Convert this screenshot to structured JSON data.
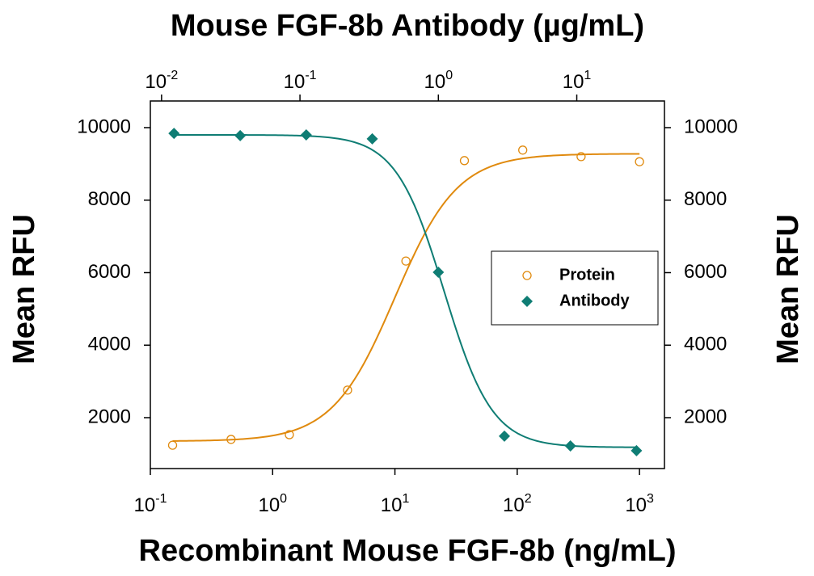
{
  "chart_data": {
    "type": "scatter",
    "x_label": "Recombinant Mouse FGF-8b (ng/mL)",
    "x2_label": "Mouse FGF-8b Antibody (µg/mL)",
    "y_label": "Mean RFU",
    "y2_label": "Mean RFU",
    "x_log": true,
    "x2_log": true,
    "xlim": [
      0.1,
      1600
    ],
    "xticks": [
      {
        "value": 0.1,
        "label": "10",
        "exponent": "-1"
      },
      {
        "value": 1,
        "label": "10",
        "exponent": "0"
      },
      {
        "value": 10,
        "label": "10",
        "exponent": "1"
      },
      {
        "value": 100,
        "label": "10",
        "exponent": "2"
      },
      {
        "value": 1000,
        "label": "10",
        "exponent": "3"
      }
    ],
    "x2lim": [
      0.0083,
      43
    ],
    "x2ticks": [
      {
        "value": 0.01,
        "label": "10",
        "exponent": "-2"
      },
      {
        "value": 0.1,
        "label": "10",
        "exponent": "-1"
      },
      {
        "value": 1,
        "label": "10",
        "exponent": "0"
      },
      {
        "value": 10,
        "label": "10",
        "exponent": "1"
      }
    ],
    "ylim": [
      596,
      10735
    ],
    "yticks": [
      2000,
      4000,
      6000,
      8000,
      10000
    ],
    "y2lim": [
      596,
      10735
    ],
    "y2ticks": [
      2000,
      4000,
      6000,
      8000,
      10000
    ],
    "legend": "right",
    "series": [
      {
        "name": "Protein",
        "color": "#e08a0e",
        "marker": "open-circle",
        "xaxis": "x",
        "x": [
          0.152,
          0.457,
          1.37,
          4.1,
          12.3,
          37,
          111,
          333,
          1000
        ],
        "values": [
          1240,
          1400,
          1530,
          2760,
          6320,
          9090,
          9380,
          9200,
          9060
        ],
        "fit": {
          "bottom": 1350,
          "top": 9280,
          "ec50": 10,
          "hill": 1.7
        }
      },
      {
        "name": "Antibody",
        "color": "#0f7d74",
        "marker": "diamond",
        "xaxis": "x2",
        "axis": "y2",
        "x": [
          0.0123,
          0.037,
          0.111,
          0.333,
          1,
          3,
          9,
          27
        ],
        "values": [
          9840,
          9780,
          9800,
          9690,
          6010,
          1490,
          1220,
          1090
        ],
        "fit": {
          "bottom": 1180,
          "top": 9800,
          "ec50": 1.1,
          "hill": 2.5
        }
      }
    ]
  }
}
